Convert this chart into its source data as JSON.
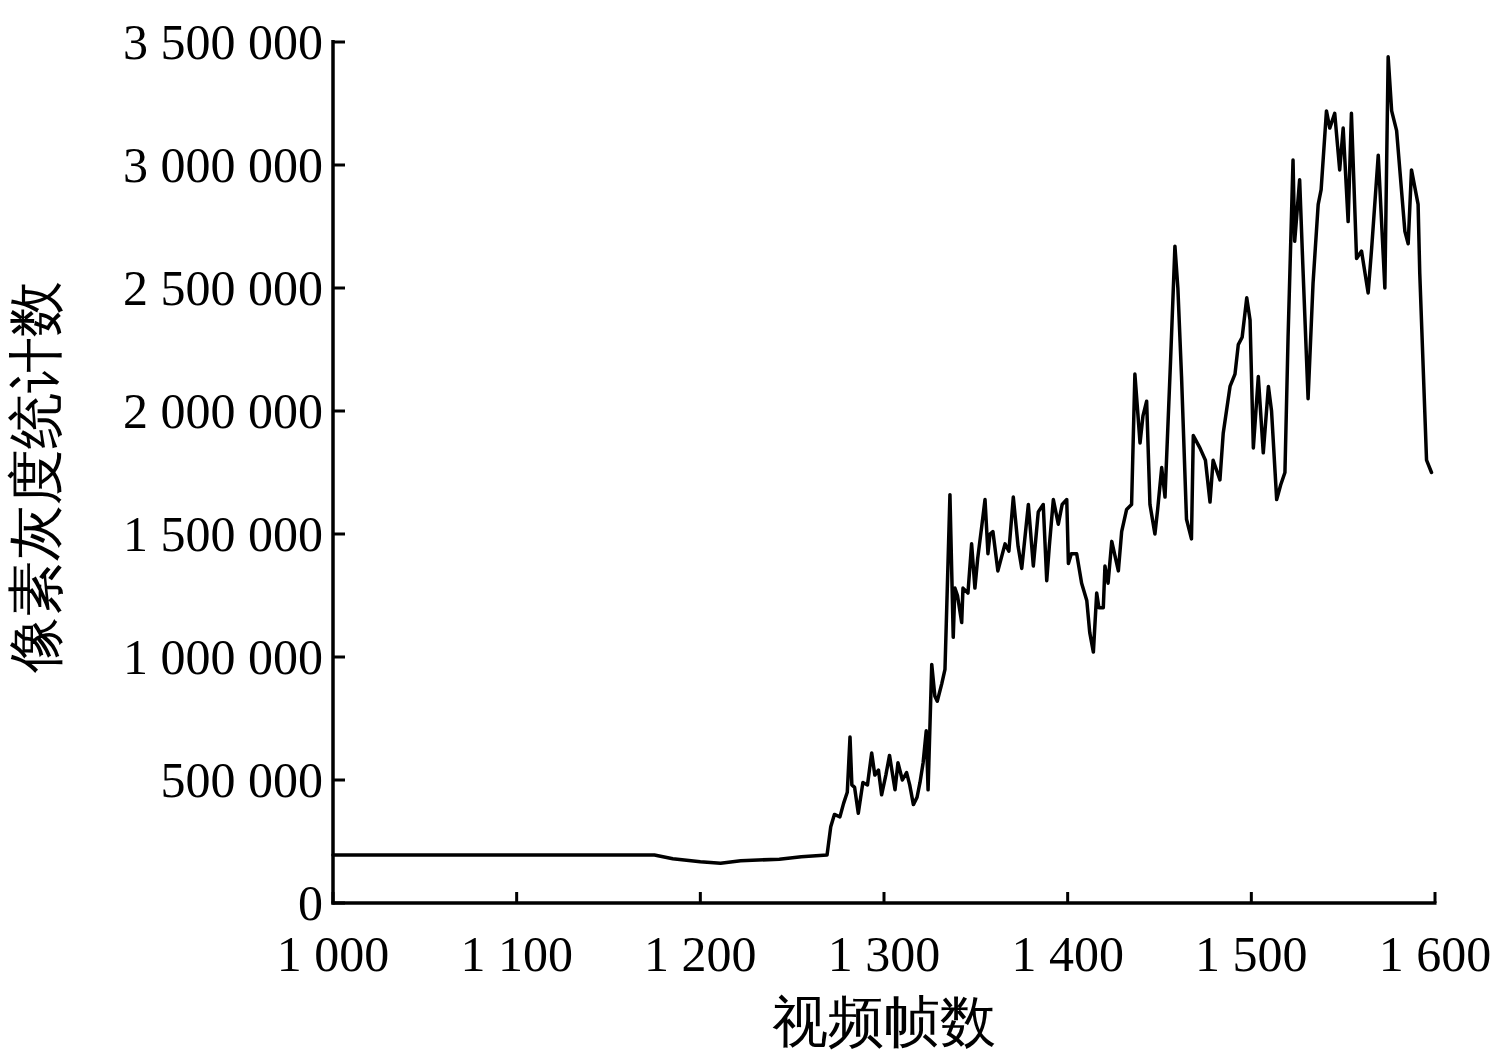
{
  "chart_data": {
    "type": "line",
    "xlabel": "视频帧数",
    "ylabel": "像素灰度统计数",
    "xlim": [
      1000,
      1600
    ],
    "xticks": [
      {
        "value": 1000,
        "label": "1 000"
      },
      {
        "value": 1100,
        "label": "1 100"
      },
      {
        "value": 1200,
        "label": "1 200"
      },
      {
        "value": 1300,
        "label": "1 300"
      },
      {
        "value": 1400,
        "label": "1 400"
      },
      {
        "value": 1500,
        "label": "1 500"
      },
      {
        "value": 1600,
        "label": "1 600"
      }
    ],
    "ylim": [
      0,
      3500000
    ],
    "yticks": [
      0,
      {
        "value": 500000,
        "label": "500 000"
      },
      {
        "value": 1000000,
        "label": "1 000 000"
      },
      {
        "value": 1500000,
        "label": "1 500 000"
      },
      {
        "value": 2000000,
        "label": "2 000 000"
      },
      {
        "value": 2500000,
        "label": "2 500 000"
      },
      {
        "value": 3000000,
        "label": "3 000 000"
      },
      {
        "value": 3500000,
        "label": "3 500 000"
      }
    ],
    "line_style": "solid",
    "x": [
      1000,
      1175,
      1185,
      1200,
      1211,
      1222,
      1243,
      1255,
      1269,
      1271,
      1273,
      1276,
      1278,
      1280,
      1281.5,
      1282.5,
      1284,
      1286,
      1288.5,
      1291,
      1293.3,
      1295,
      1297,
      1298.7,
      1301,
      1303,
      1306,
      1307.6,
      1310,
      1312.3,
      1314,
      1316,
      1318,
      1319.6,
      1321.3,
      1323,
      1324,
      1326,
      1327.7,
      1329,
      1331.4,
      1333.2,
      1334,
      1335.9,
      1337.7,
      1338.6,
      1340,
      1342.3,
      1343,
      1345.7,
      1347.7,
      1349.5,
      1351,
      1353.2,
      1355,
      1356.6,
      1357.7,
      1359.3,
      1362,
      1365.9,
      1368,
      1370.4,
      1373,
      1375,
      1378.6,
      1381.3,
      1384,
      1386.7,
      1388.6,
      1390,
      1392.2,
      1394.9,
      1397,
      1399.5,
      1400.4,
      1402,
      1404.9,
      1407.6,
      1410.4,
      1412,
      1414,
      1415.8,
      1417,
      1419.4,
      1420.3,
      1422,
      1424,
      1427.6,
      1429.4,
      1432.1,
      1434.8,
      1436.6,
      1439.4,
      1441,
      1443,
      1444.8,
      1447.5,
      1449,
      1451.2,
      1453,
      1456,
      1458.4,
      1460,
      1462,
      1464.7,
      1467.4,
      1468.4,
      1472,
      1475,
      1477.5,
      1479.2,
      1482.9,
      1484.7,
      1488.4,
      1491.1,
      1492.9,
      1495,
      1497.5,
      1499.3,
      1501.1,
      1503.8,
      1506.5,
      1509.3,
      1511,
      1513.8,
      1516,
      1518.3,
      1520,
      1522.7,
      1523.6,
      1526.3,
      1528,
      1530.9,
      1533.6,
      1536.4,
      1538,
      1540.9,
      1542.7,
      1545.4,
      1548.1,
      1550,
      1552.7,
      1554.5,
      1557.3,
      1560,
      1563.6,
      1565.5,
      1569.1,
      1572.7,
      1574.5,
      1576.4,
      1579.1,
      1583.6,
      1585.4,
      1587.2,
      1590.8,
      1591.7,
      1595.4,
      1598.1
    ],
    "series": [
      {
        "color": "#000000",
        "values": [
          195000,
          195000,
          180000,
          168000,
          162000,
          172000,
          178000,
          188000,
          195000,
          310000,
          360000,
          350000,
          405000,
          450000,
          675000,
          480000,
          470000,
          365000,
          490000,
          480000,
          610000,
          520000,
          540000,
          440000,
          520000,
          600000,
          460000,
          570000,
          500000,
          530000,
          480000,
          400000,
          430000,
          490000,
          570000,
          700000,
          460000,
          970000,
          840000,
          820000,
          890000,
          950000,
          1160000,
          1660000,
          1080000,
          1280000,
          1250000,
          1140000,
          1280000,
          1260000,
          1460000,
          1280000,
          1400000,
          1530000,
          1640000,
          1420000,
          1500000,
          1510000,
          1350000,
          1460000,
          1430000,
          1650000,
          1450000,
          1360000,
          1620000,
          1370000,
          1590000,
          1620000,
          1310000,
          1450000,
          1640000,
          1540000,
          1620000,
          1640000,
          1380000,
          1420000,
          1420000,
          1300000,
          1230000,
          1100000,
          1020000,
          1260000,
          1200000,
          1200000,
          1370000,
          1300000,
          1470000,
          1350000,
          1510000,
          1600000,
          1620000,
          2150000,
          1870000,
          1980000,
          2040000,
          1620000,
          1500000,
          1600000,
          1770000,
          1650000,
          2200000,
          2670000,
          2500000,
          2140000,
          1560000,
          1480000,
          1900000,
          1850000,
          1800000,
          1630000,
          1800000,
          1720000,
          1910000,
          2100000,
          2150000,
          2270000,
          2300000,
          2460000,
          2370000,
          1850000,
          2140000,
          1830000,
          2100000,
          2000000,
          1640000,
          1700000,
          1750000,
          2300000,
          3020000,
          2690000,
          2940000,
          2600000,
          2050000,
          2520000,
          2840000,
          2900000,
          3220000,
          3150000,
          3210000,
          2980000,
          3150000,
          2770000,
          3210000,
          2620000,
          2650000,
          2480000,
          2660000,
          3040000,
          2500000,
          3440000,
          3220000,
          3140000,
          2730000,
          2680000,
          2980000,
          2840000,
          2560000,
          1800000,
          1750000
        ]
      }
    ]
  }
}
